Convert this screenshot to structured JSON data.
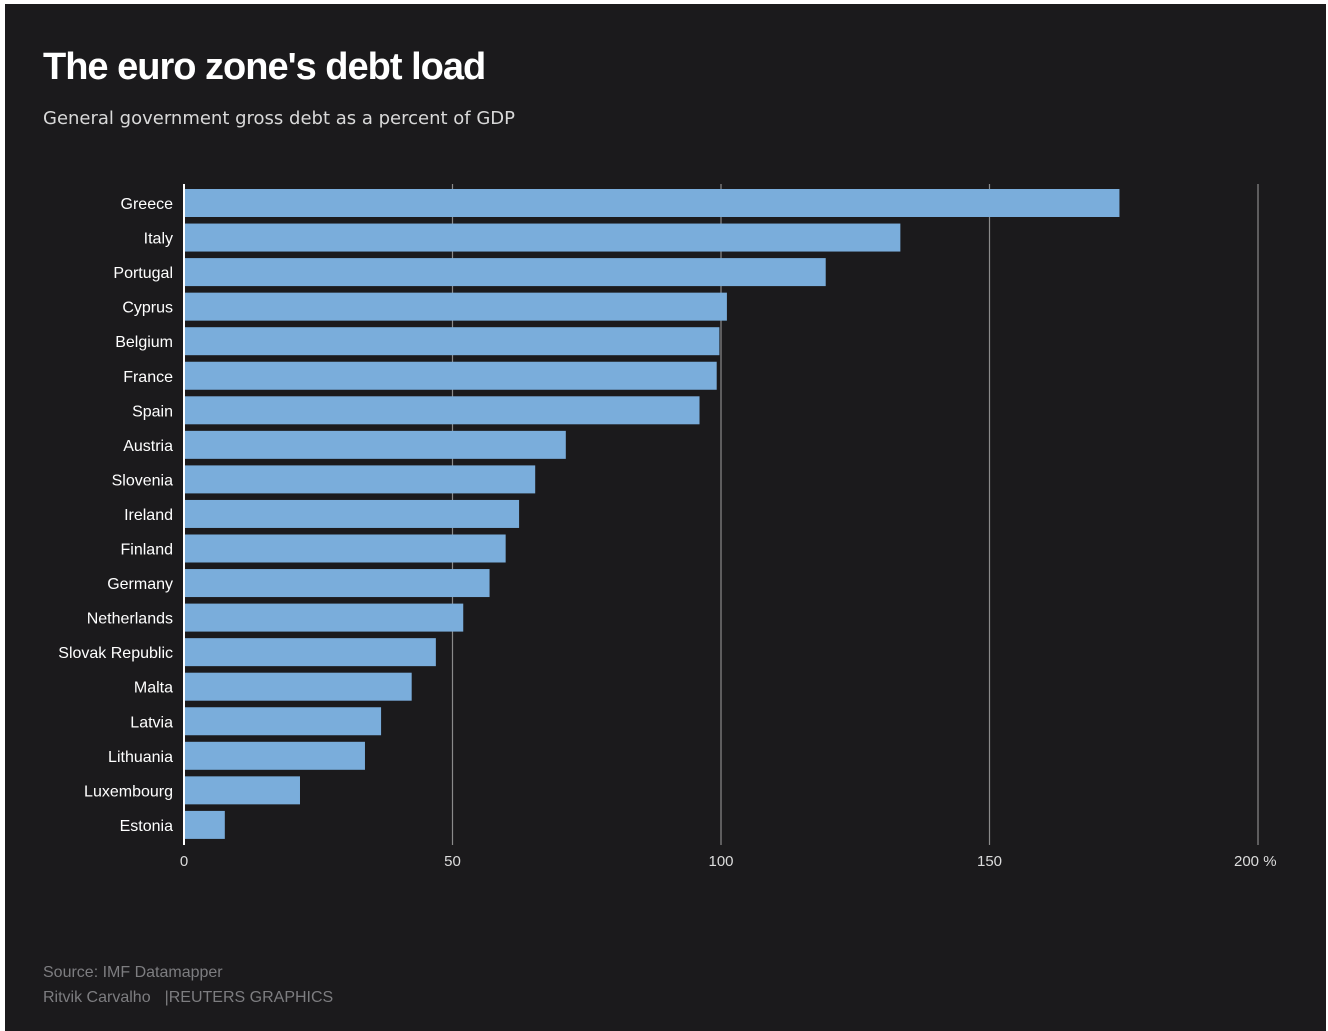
{
  "title": "The euro zone's debt load",
  "subtitle": "General government gross debt as a percent of GDP",
  "footer": {
    "source": "Source: IMF Datamapper",
    "author": "Ritvik Carvalho",
    "separator": "|",
    "brand": "REUTERS GRAPHICS"
  },
  "colors": {
    "background": "#1b1a1c",
    "bar": "#7aaddb",
    "gridline": "#8a8a8a",
    "text": "#ffffff"
  },
  "chart_data": {
    "type": "bar",
    "orientation": "horizontal",
    "categories": [
      "Greece",
      "Italy",
      "Portugal",
      "Cyprus",
      "Belgium",
      "France",
      "Spain",
      "Austria",
      "Slovenia",
      "Ireland",
      "Finland",
      "Germany",
      "Netherlands",
      "Slovak Republic",
      "Malta",
      "Latvia",
      "Lithuania",
      "Luxembourg",
      "Estonia"
    ],
    "values": [
      174.2,
      133.4,
      119.5,
      101.1,
      99.7,
      99.2,
      96.0,
      71.1,
      65.4,
      62.4,
      59.9,
      56.9,
      52.0,
      46.9,
      42.4,
      36.7,
      33.7,
      21.6,
      7.6
    ],
    "xlim": [
      0,
      200
    ],
    "ticks": [
      0,
      50,
      100,
      150,
      200
    ],
    "tick_labels": [
      "0",
      "50",
      "100",
      "150",
      "200 %"
    ],
    "grid": true,
    "legend": "none"
  }
}
